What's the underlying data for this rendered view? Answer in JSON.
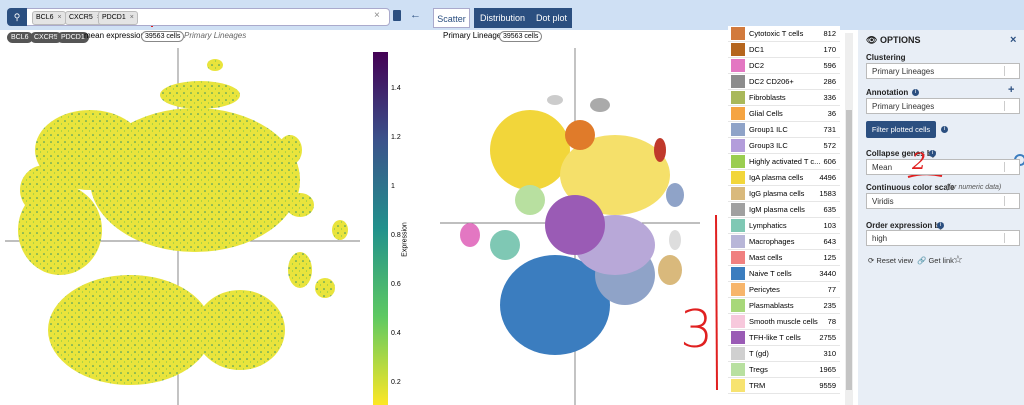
{
  "search": {
    "tags": [
      "BCL6",
      "CXCR5",
      "PDCD1"
    ],
    "remove": "×",
    "clear": "×"
  },
  "tabs": [
    "Scatter",
    "Distribution",
    "Dot plot"
  ],
  "left_plot": {
    "tags": [
      "BCL6",
      "CXCR5",
      "PDCD1"
    ],
    "title": "mean expression",
    "cells": "39563 cells",
    "annotation": "Primary Lineages",
    "colorbar": {
      "label": "Expression",
      "ticks": [
        1.4,
        1.2,
        1,
        0.8,
        0.6,
        0.4,
        0.2
      ]
    }
  },
  "mid_plot": {
    "annotation": "Primary Lineages",
    "cells": "39563 cells"
  },
  "legend": [
    {
      "name": "Cytotoxic T cells",
      "count": 812,
      "color": "#d27a3c"
    },
    {
      "name": "DC1",
      "count": 170,
      "color": "#b5651d"
    },
    {
      "name": "DC2",
      "count": 596,
      "color": "#e377c2"
    },
    {
      "name": "DC2 CD206+",
      "count": 286,
      "color": "#8c8c8c"
    },
    {
      "name": "Fibroblasts",
      "count": 336,
      "color": "#a9b85a"
    },
    {
      "name": "Glial Cells",
      "count": 36,
      "color": "#f5a442"
    },
    {
      "name": "Group1 ILC",
      "count": 731,
      "color": "#8fa3c8"
    },
    {
      "name": "Group3 ILC",
      "count": 572,
      "color": "#b39ddb"
    },
    {
      "name": "Highly activated T c...",
      "count": 606,
      "color": "#9acd50"
    },
    {
      "name": "IgA plasma cells",
      "count": 4496,
      "color": "#f2d63a"
    },
    {
      "name": "IgG plasma cells",
      "count": 1583,
      "color": "#d9b97c"
    },
    {
      "name": "IgM plasma cells",
      "count": 635,
      "color": "#a0a0a0"
    },
    {
      "name": "Lymphatics",
      "count": 103,
      "color": "#7fc8b4"
    },
    {
      "name": "Macrophages",
      "count": 643,
      "color": "#b8b6d8"
    },
    {
      "name": "Mast cells",
      "count": 125,
      "color": "#f08080"
    },
    {
      "name": "Naive T cells",
      "count": 3440,
      "color": "#3b7dbf"
    },
    {
      "name": "Pericytes",
      "count": 77,
      "color": "#f7b56b"
    },
    {
      "name": "Plasmablasts",
      "count": 235,
      "color": "#a8d87a"
    },
    {
      "name": "Smooth muscle cells",
      "count": 78,
      "color": "#f7c8dc"
    },
    {
      "name": "TFH-like T cells",
      "count": 2755,
      "color": "#9a5bb5"
    },
    {
      "name": "T (gd)",
      "count": 310,
      "color": "#d0d0d0"
    },
    {
      "name": "Tregs",
      "count": 1965,
      "color": "#b8e0a0"
    },
    {
      "name": "TRM",
      "count": 9559,
      "color": "#f7e370"
    }
  ],
  "options": {
    "title": "OPTIONS",
    "close": "×",
    "clustering": {
      "label": "Clustering",
      "value": "Primary Lineages"
    },
    "annotation": {
      "label": "Annotation",
      "value": "Primary Lineages",
      "add": "+"
    },
    "filter_button": "Filter plotted cells",
    "collapse": {
      "label": "Collapse genes by",
      "value": "Mean"
    },
    "color_scale": {
      "label": "Continuous color scale",
      "hint": "(for numeric data)",
      "value": "Viridis"
    },
    "order": {
      "label": "Order expression by",
      "value": "high"
    },
    "reset": "Reset view",
    "link": "Get link"
  },
  "annotations": [
    "2",
    "3"
  ]
}
